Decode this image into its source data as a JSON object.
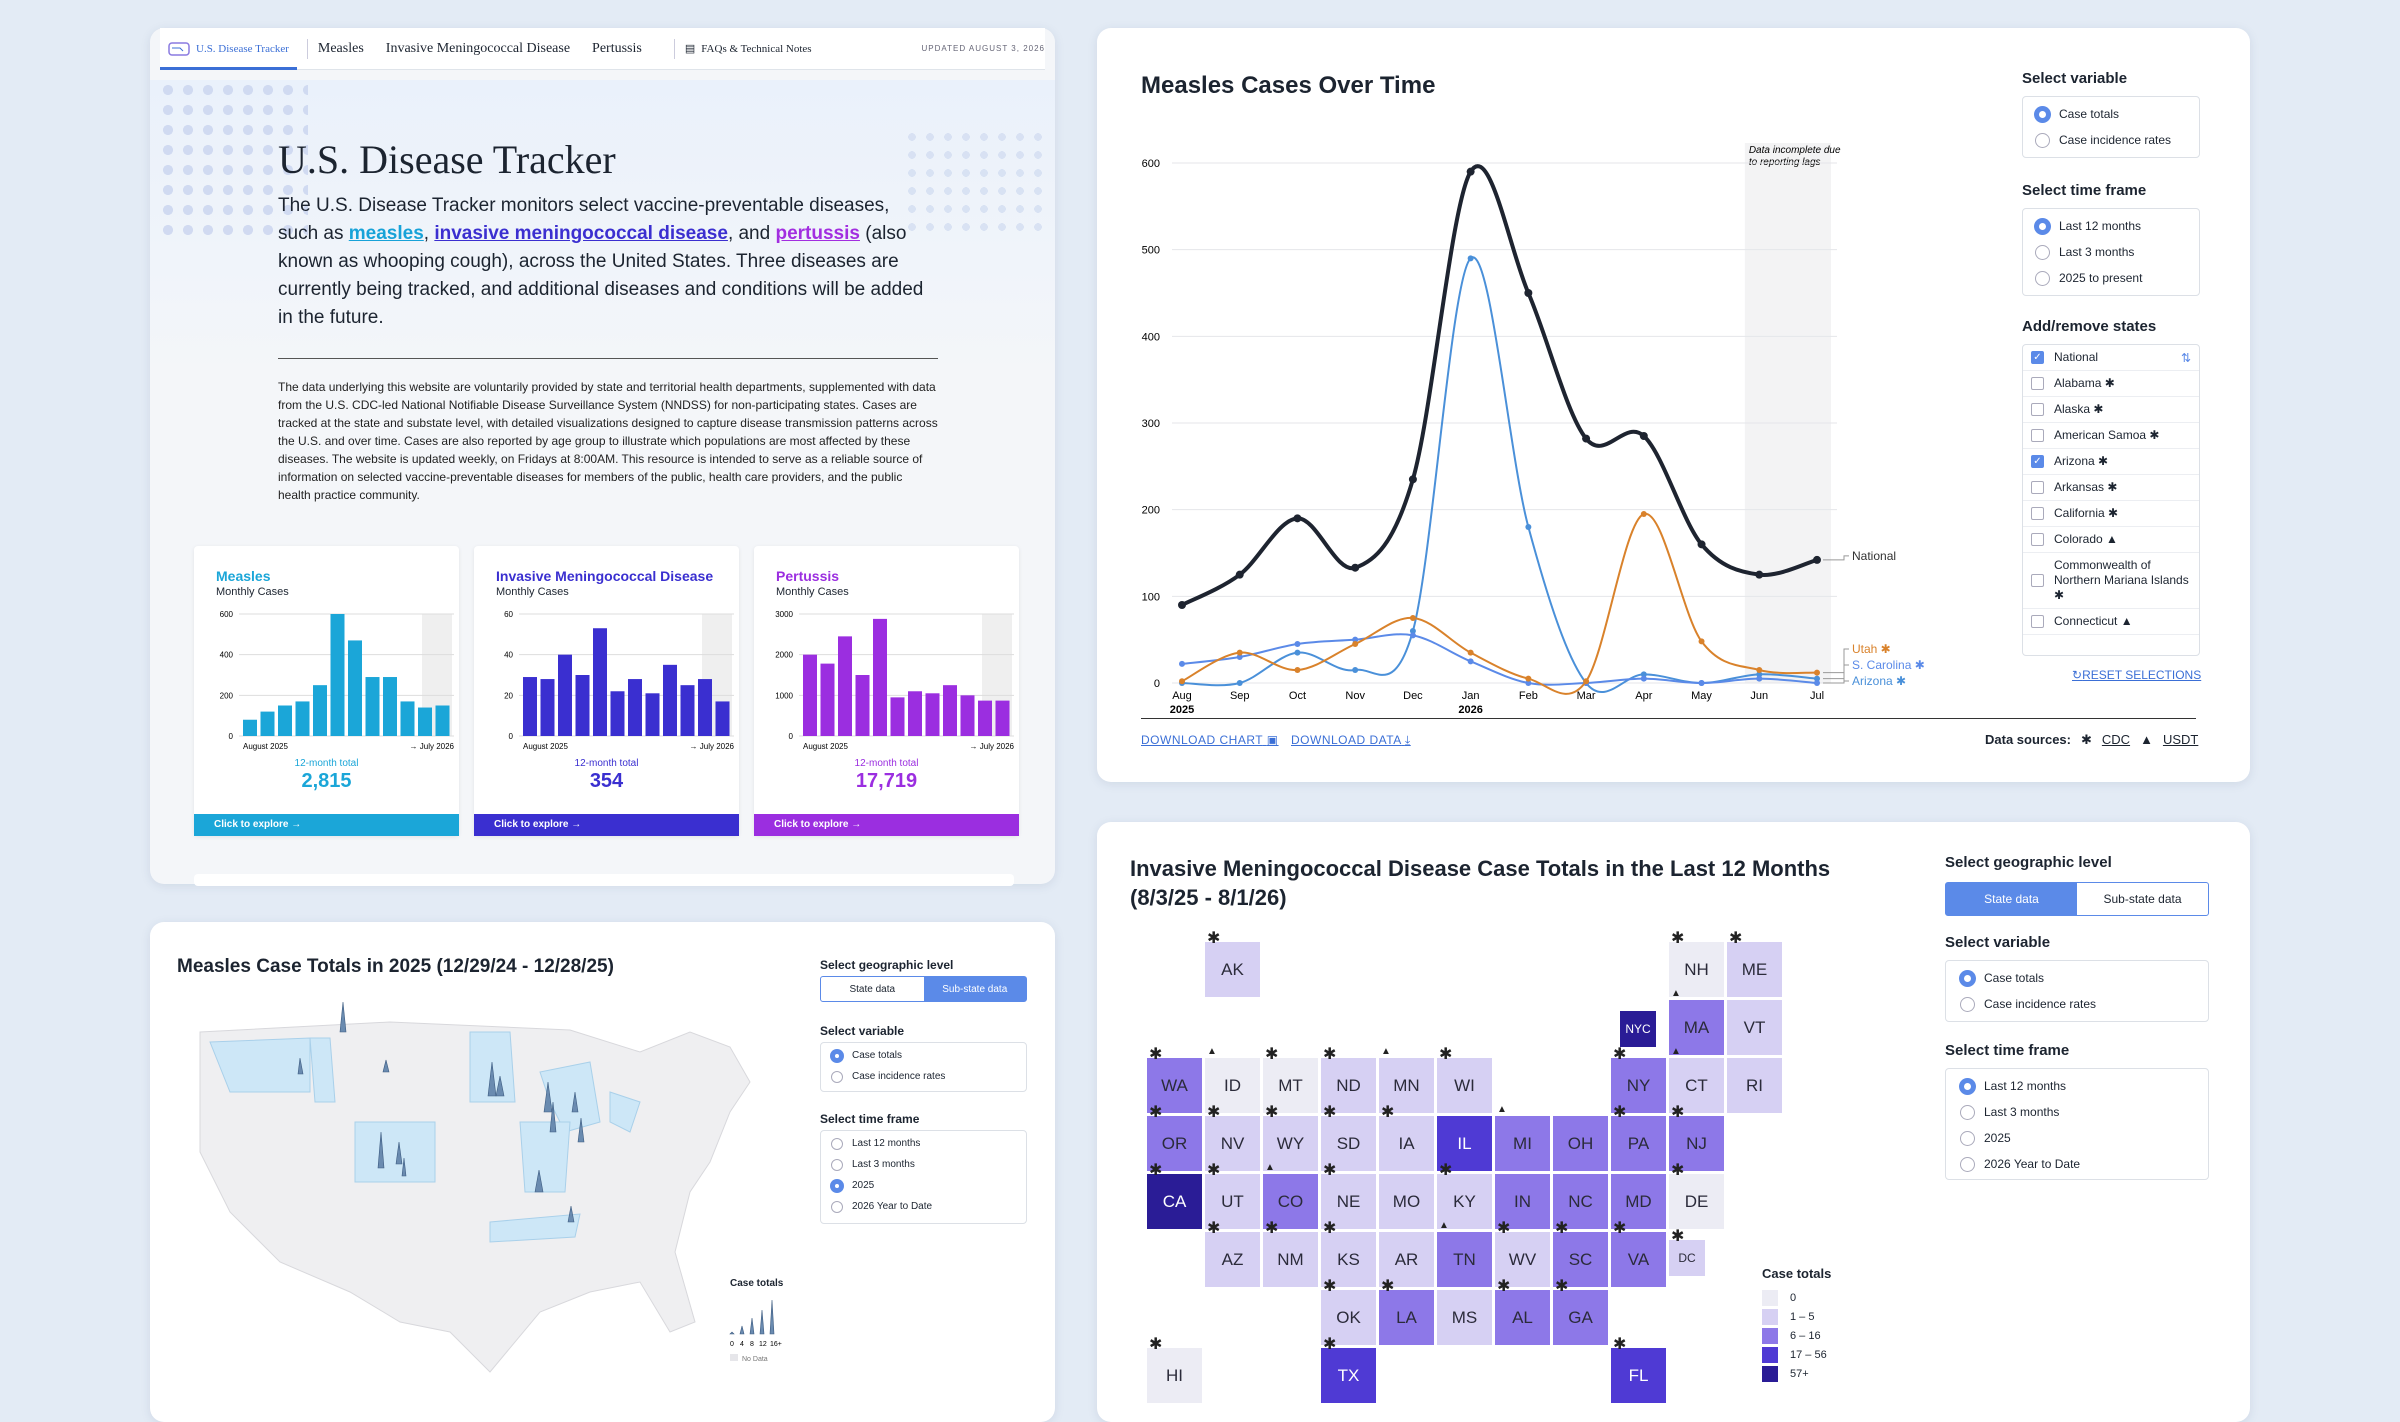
{
  "nav": {
    "brand": "U.S. Disease Tracker",
    "links": [
      "Measles",
      "Invasive Meningococcal Disease",
      "Pertussis"
    ],
    "faq": "FAQs & Technical Notes",
    "updated": "UPDATED AUGUST 3, 2026"
  },
  "hero": {
    "title": "U.S. Disease Tracker",
    "lead_a": "The U.S. Disease Tracker monitors select vaccine-preventable diseases, such as ",
    "link_measles": "measles",
    "comma": ", ",
    "link_imd": "invasive meningococcal disease",
    "and": ", and ",
    "link_pert": "pertussis",
    "lead_b": " (also known as whooping cough), across the United States. Three diseases are currently being tracked, and additional diseases and conditions will be added in the future.",
    "fine": "The data underlying this website are voluntarily provided by state and territorial health departments, supplemented with data from the U.S. CDC-led National Notifiable Disease Surveillance System (NNDSS) for non-participating states. Cases are tracked at the state and substate level, with detailed visualizations designed to capture disease transmission patterns across the U.S. and over time. Cases are also reported by age group to illustrate which populations are most affected by these diseases. The website is updated weekly, on Fridays at 8:00AM. This resource is intended to serve as a reliable source of information on selected vaccine-preventable diseases for members of the public, health care providers, and the public health practice community."
  },
  "minis": [
    {
      "title": "Measles",
      "sub": "Monthly Cases",
      "color": "#1ba6d8",
      "yt": [
        "600",
        "400",
        "200",
        "0"
      ],
      "ymax": 600,
      "values": [
        80,
        120,
        150,
        170,
        250,
        600,
        470,
        290,
        290,
        170,
        140,
        150
      ],
      "from": "August 2025",
      "to": "July 2026",
      "total_label": "12-month total",
      "total": "2,815",
      "cta": "Click to explore  →"
    },
    {
      "title": "Invasive Meningococcal Disease",
      "sub": "Monthly Cases",
      "color": "#3a2fd0",
      "yt": [
        "60",
        "40",
        "20",
        "0"
      ],
      "ymax": 60,
      "values": [
        29,
        28,
        40,
        30,
        53,
        22,
        28,
        21,
        35,
        25,
        28,
        17
      ],
      "from": "August 2025",
      "to": "July 2026",
      "total_label": "12-month total",
      "total": "354",
      "cta": "Click to explore  →"
    },
    {
      "title": "Pertussis",
      "sub": "Monthly Cases",
      "color": "#9b2ee0",
      "yt": [
        "3000",
        "2000",
        "1000",
        "0"
      ],
      "ymax": 3000,
      "values": [
        2000,
        1780,
        2450,
        1500,
        2880,
        950,
        1100,
        1050,
        1250,
        1000,
        870,
        870
      ],
      "from": "August 2025",
      "to": "July 2026",
      "total_label": "12-month total",
      "total": "17,719",
      "cta": "Click to explore  →"
    }
  ],
  "chart_title": "Measles Cases Over Time",
  "chart_data": {
    "type": "line",
    "title": "Measles Cases Over Time",
    "x": [
      "Aug 2025",
      "Sep",
      "Oct",
      "Nov",
      "Dec",
      "Jan 2026",
      "Feb",
      "Mar",
      "Apr",
      "May",
      "Jun",
      "Jul"
    ],
    "xticks": [
      "Aug",
      "Sep",
      "Oct",
      "Nov",
      "Dec",
      "Jan",
      "Feb",
      "Mar",
      "Apr",
      "May",
      "Jun",
      "Jul"
    ],
    "xyears": [
      "2025",
      "",
      "",
      "",
      "",
      "2026",
      "",
      "",
      "",
      "",
      "",
      ""
    ],
    "ylim": [
      0,
      600
    ],
    "yticks": [
      0,
      100,
      200,
      300,
      400,
      500,
      600
    ],
    "annotation": "Data incomplete due to reporting lags",
    "series": [
      {
        "name": "National",
        "color": "#1e2430",
        "values": [
          90,
          125,
          190,
          133,
          235,
          590,
          450,
          282,
          285,
          160,
          125,
          142
        ]
      },
      {
        "name": "Utah ✱",
        "color": "#d9822b",
        "values": [
          2,
          35,
          15,
          45,
          75,
          35,
          5,
          2,
          195,
          48,
          15,
          12
        ]
      },
      {
        "name": "S. Carolina ✱",
        "color": "#5b8ae8",
        "values": [
          22,
          30,
          45,
          50,
          55,
          25,
          0,
          0,
          5,
          0,
          5,
          0
        ]
      },
      {
        "name": "Arizona ✱",
        "color": "#4a90d9",
        "values": [
          0,
          0,
          35,
          15,
          60,
          490,
          180,
          0,
          10,
          0,
          10,
          5
        ]
      }
    ]
  },
  "controls": {
    "variable_h": "Select variable",
    "variables": [
      "Case totals",
      "Case incidence rates"
    ],
    "time_h": "Select time frame",
    "times": [
      "Last 12 months",
      "Last 3 months",
      "2025 to present"
    ],
    "states_h": "Add/remove states",
    "states": [
      "National",
      "Alabama ✱",
      "Alaska ✱",
      "American Samoa ✱",
      "Arizona ✱",
      "Arkansas ✱",
      "California ✱",
      "Colorado ▲",
      "Commonwealth of Northern Mariana Islands ✱",
      "Connecticut ▲"
    ],
    "reset": "RESET SELECTIONS",
    "download_chart": "DOWNLOAD CHART",
    "download_data": "DOWNLOAD DATA",
    "sources_label": "Data sources:",
    "src1": "CDC",
    "src2": "USDT"
  },
  "map3": {
    "title": "Measles Case Totals in 2025 (12/29/24 - 12/28/25)",
    "geo_h": "Select geographic level",
    "geo": [
      "State data",
      "Sub-state data"
    ],
    "var_h": "Select variable",
    "vars": [
      "Case totals",
      "Case incidence rates"
    ],
    "time_h": "Select time frame",
    "times": [
      "Last 12 months",
      "Last 3 months",
      "2025",
      "2026 Year to Date"
    ],
    "legend_h": "Case totals",
    "legend_ticks": [
      "0",
      "4",
      "8",
      "12",
      "16+"
    ],
    "no_data": "No Data"
  },
  "map4": {
    "title1": "Invasive Meningococcal Disease Case Totals in the Last 12 Months",
    "title2": "(8/3/25 - 8/1/26)",
    "geo_h": "Select geographic level",
    "geo": [
      "State data",
      "Sub-state data"
    ],
    "var_h": "Select variable",
    "vars": [
      "Case totals",
      "Case incidence rates"
    ],
    "time_h": "Select time frame",
    "times": [
      "Last 12 months",
      "Last 3 months",
      "2025",
      "2026 Year to Date"
    ],
    "legend_h": "Case totals",
    "legend": [
      "0",
      "1 – 5",
      "6 – 16",
      "17 – 56",
      "57+"
    ],
    "legend_colors": [
      "#ececf4",
      "#d6d0f3",
      "#8d78e8",
      "#4f3ad4",
      "#2a1c96"
    ],
    "tiles": [
      {
        "s": "AK",
        "c": 1,
        "r": 0,
        "v": 1,
        "m": "✱"
      },
      {
        "s": "NH",
        "c": 9,
        "r": 0,
        "v": 0,
        "m": "✱"
      },
      {
        "s": "ME",
        "c": 10,
        "r": 0,
        "v": 1,
        "m": "✱"
      },
      {
        "s": "NYC",
        "c": 8,
        "r": 1,
        "v": 4,
        "m": ""
      },
      {
        "s": "MA",
        "c": 9,
        "r": 1,
        "v": 2,
        "m": "▲"
      },
      {
        "s": "VT",
        "c": 10,
        "r": 1,
        "v": 1,
        "m": ""
      },
      {
        "s": "WA",
        "c": 0,
        "r": 2,
        "v": 2,
        "m": "✱"
      },
      {
        "s": "ID",
        "c": 1,
        "r": 2,
        "v": 0,
        "m": "▲"
      },
      {
        "s": "MT",
        "c": 2,
        "r": 2,
        "v": 0,
        "m": "✱"
      },
      {
        "s": "ND",
        "c": 3,
        "r": 2,
        "v": 1,
        "m": "✱"
      },
      {
        "s": "MN",
        "c": 4,
        "r": 2,
        "v": 1,
        "m": "▲"
      },
      {
        "s": "WI",
        "c": 5,
        "r": 2,
        "v": 1,
        "m": "✱"
      },
      {
        "s": "NY",
        "c": 8,
        "r": 2,
        "v": 2,
        "m": "✱"
      },
      {
        "s": "CT",
        "c": 9,
        "r": 2,
        "v": 1,
        "m": "▲"
      },
      {
        "s": "RI",
        "c": 10,
        "r": 2,
        "v": 1,
        "m": ""
      },
      {
        "s": "OR",
        "c": 0,
        "r": 3,
        "v": 2,
        "m": "✱"
      },
      {
        "s": "NV",
        "c": 1,
        "r": 3,
        "v": 1,
        "m": "✱"
      },
      {
        "s": "WY",
        "c": 2,
        "r": 3,
        "v": 1,
        "m": "✱"
      },
      {
        "s": "SD",
        "c": 3,
        "r": 3,
        "v": 1,
        "m": "✱"
      },
      {
        "s": "IA",
        "c": 4,
        "r": 3,
        "v": 1,
        "m": "✱"
      },
      {
        "s": "IL",
        "c": 5,
        "r": 3,
        "v": 3,
        "m": ""
      },
      {
        "s": "MI",
        "c": 6,
        "r": 3,
        "v": 2,
        "m": "▲"
      },
      {
        "s": "OH",
        "c": 7,
        "r": 3,
        "v": 2,
        "m": ""
      },
      {
        "s": "PA",
        "c": 8,
        "r": 3,
        "v": 2,
        "m": "✱"
      },
      {
        "s": "NJ",
        "c": 9,
        "r": 3,
        "v": 2,
        "m": "✱"
      },
      {
        "s": "CA",
        "c": 0,
        "r": 4,
        "v": 4,
        "m": "✱"
      },
      {
        "s": "UT",
        "c": 1,
        "r": 4,
        "v": 1,
        "m": "✱"
      },
      {
        "s": "CO",
        "c": 2,
        "r": 4,
        "v": 2,
        "m": "▲"
      },
      {
        "s": "NE",
        "c": 3,
        "r": 4,
        "v": 1,
        "m": "✱"
      },
      {
        "s": "MO",
        "c": 4,
        "r": 4,
        "v": 1,
        "m": ""
      },
      {
        "s": "KY",
        "c": 5,
        "r": 4,
        "v": 1,
        "m": "✱"
      },
      {
        "s": "IN",
        "c": 6,
        "r": 4,
        "v": 2,
        "m": ""
      },
      {
        "s": "NC",
        "c": 7,
        "r": 4,
        "v": 2,
        "m": ""
      },
      {
        "s": "MD",
        "c": 8,
        "r": 4,
        "v": 2,
        "m": ""
      },
      {
        "s": "DE",
        "c": 9,
        "r": 4,
        "v": 0,
        "m": "✱"
      },
      {
        "s": "AZ",
        "c": 1,
        "r": 5,
        "v": 1,
        "m": "✱"
      },
      {
        "s": "NM",
        "c": 2,
        "r": 5,
        "v": 1,
        "m": "✱"
      },
      {
        "s": "KS",
        "c": 3,
        "r": 5,
        "v": 1,
        "m": "✱"
      },
      {
        "s": "AR",
        "c": 4,
        "r": 5,
        "v": 1,
        "m": ""
      },
      {
        "s": "TN",
        "c": 5,
        "r": 5,
        "v": 2,
        "m": "▲"
      },
      {
        "s": "WV",
        "c": 6,
        "r": 5,
        "v": 1,
        "m": "✱"
      },
      {
        "s": "SC",
        "c": 7,
        "r": 5,
        "v": 2,
        "m": "✱"
      },
      {
        "s": "VA",
        "c": 8,
        "r": 5,
        "v": 2,
        "m": "✱"
      },
      {
        "s": "DC",
        "c": 9,
        "r": 5,
        "v": 1,
        "m": "✱"
      },
      {
        "s": "OK",
        "c": 3,
        "r": 6,
        "v": 1,
        "m": "✱"
      },
      {
        "s": "LA",
        "c": 4,
        "r": 6,
        "v": 2,
        "m": "✱"
      },
      {
        "s": "MS",
        "c": 5,
        "r": 6,
        "v": 1,
        "m": ""
      },
      {
        "s": "AL",
        "c": 6,
        "r": 6,
        "v": 2,
        "m": "✱"
      },
      {
        "s": "GA",
        "c": 7,
        "r": 6,
        "v": 2,
        "m": "✱"
      },
      {
        "s": "HI",
        "c": 0,
        "r": 7,
        "v": 0,
        "m": "✱"
      },
      {
        "s": "TX",
        "c": 3,
        "r": 7,
        "v": 3,
        "m": "✱"
      },
      {
        "s": "FL",
        "c": 8,
        "r": 7,
        "v": 3,
        "m": "✱"
      }
    ]
  }
}
